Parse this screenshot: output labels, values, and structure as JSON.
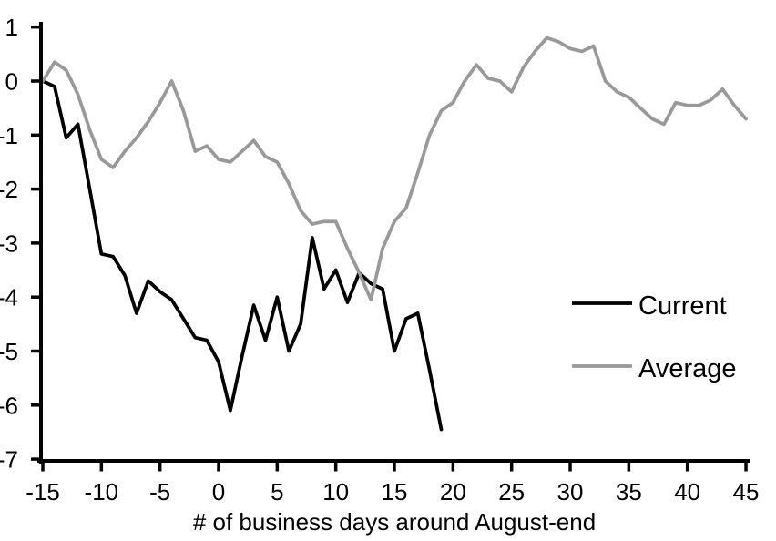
{
  "chart_data": {
    "type": "line",
    "title": "",
    "xlabel": "# of business days around August-end",
    "ylabel": "",
    "xlim": [
      -15,
      45
    ],
    "ylim": [
      -7,
      1
    ],
    "xticks": [
      -15,
      -10,
      -5,
      0,
      5,
      10,
      15,
      20,
      25,
      30,
      35,
      40,
      45
    ],
    "yticks": [
      1,
      0,
      -1,
      -2,
      -3,
      -4,
      -5,
      -6,
      -7
    ],
    "grid": false,
    "background": "#ffffff",
    "axis_color": "#000000",
    "legend_position": "middle-right",
    "series": [
      {
        "name": "Current",
        "color": "#000000",
        "x_start": -15,
        "values": [
          0,
          -0.1,
          -1.05,
          -0.8,
          -2.0,
          -3.2,
          -3.25,
          -3.6,
          -4.3,
          -3.7,
          -3.9,
          -4.05,
          -4.4,
          -4.75,
          -4.8,
          -5.2,
          -6.1,
          -5.1,
          -4.15,
          -4.8,
          -4.0,
          -5.0,
          -4.5,
          -2.9,
          -3.85,
          -3.5,
          -4.1,
          -3.55,
          -3.75,
          -3.85,
          -5.0,
          -4.4,
          -4.3,
          -5.35,
          -6.45
        ]
      },
      {
        "name": "Average",
        "color": "#999999",
        "x_start": -15,
        "values": [
          0,
          0.35,
          0.2,
          -0.25,
          -0.9,
          -1.45,
          -1.6,
          -1.3,
          -1.05,
          -0.75,
          -0.4,
          0,
          -0.55,
          -1.3,
          -1.2,
          -1.45,
          -1.5,
          -1.3,
          -1.1,
          -1.4,
          -1.5,
          -1.9,
          -2.4,
          -2.65,
          -2.6,
          -2.6,
          -3.1,
          -3.55,
          -4.05,
          -3.1,
          -2.6,
          -2.35,
          -1.7,
          -1.0,
          -0.55,
          -0.4,
          0,
          0.3,
          0.05,
          0,
          -0.2,
          0.25,
          0.55,
          0.8,
          0.73,
          0.6,
          0.55,
          0.65,
          0,
          -0.2,
          -0.3,
          -0.5,
          -0.7,
          -0.8,
          -0.4,
          -0.45,
          -0.45,
          -0.35,
          -0.15,
          -0.45,
          -0.7
        ]
      }
    ]
  }
}
